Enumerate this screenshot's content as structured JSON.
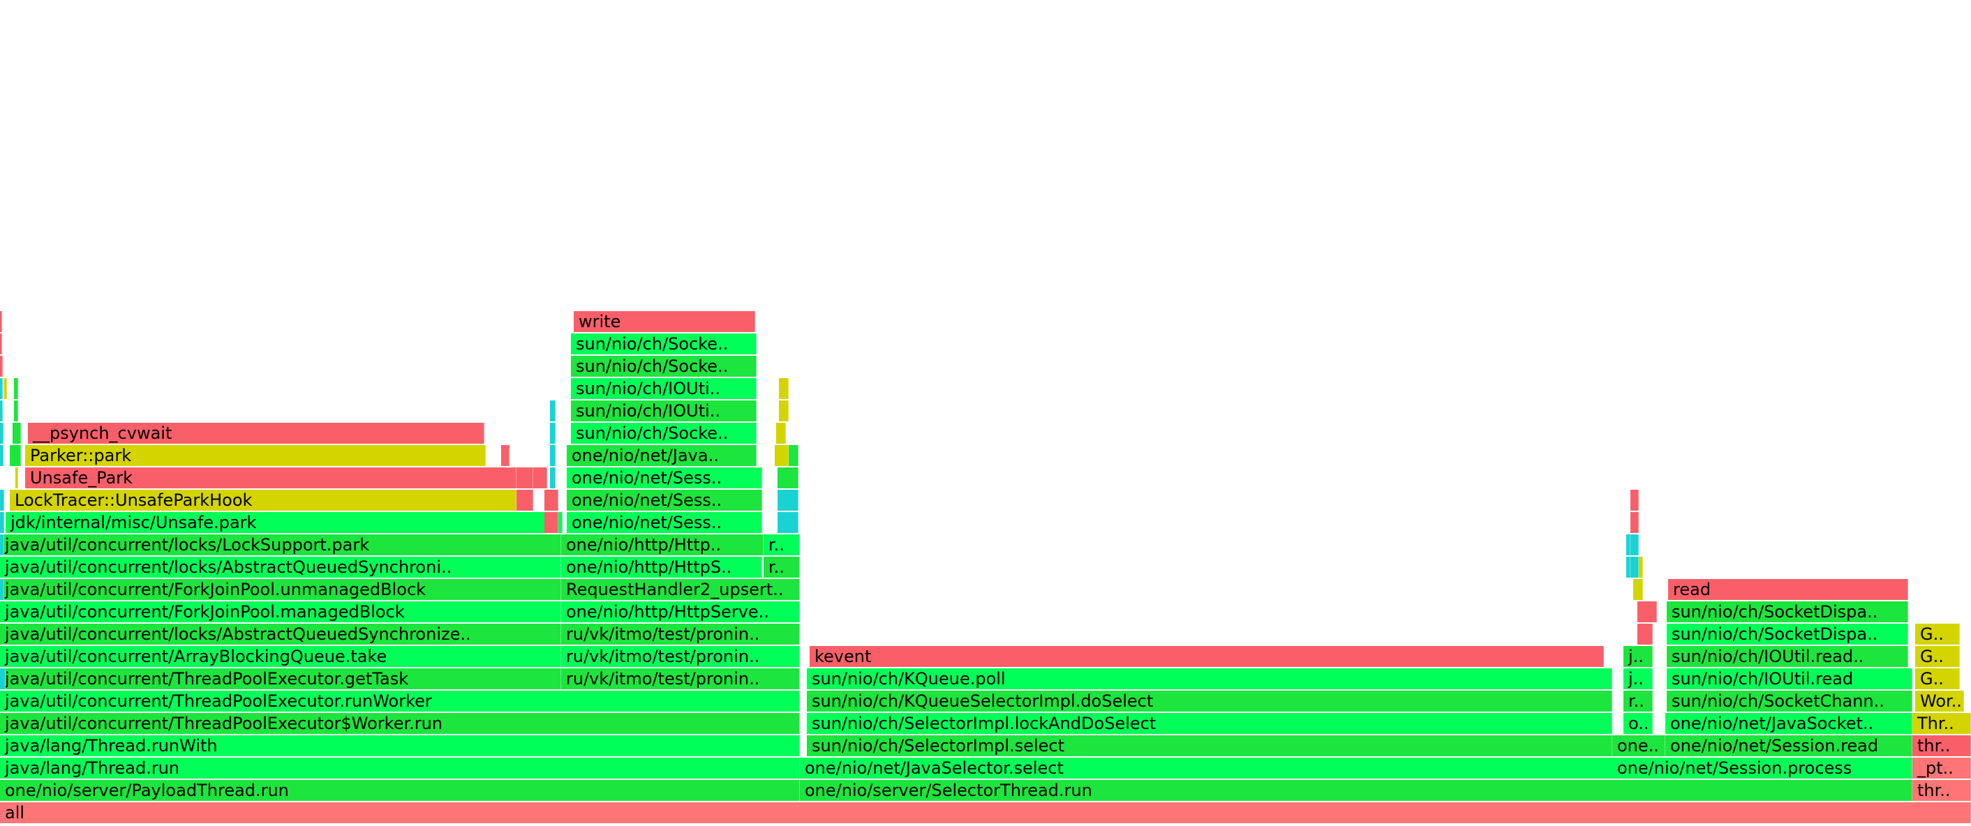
{
  "title": "",
  "colors": {
    "java": "#1ce53d",
    "java_alt": "#00ff57",
    "native": "#f95f69",
    "cpp": "#d4d400",
    "inlined": "#19d3d3",
    "root": "#ff7575"
  },
  "frames": [
    {
      "t": "all",
      "c": "root"
    },
    {
      "t": "one/nio/server/PayloadThread.run",
      "c": "java"
    },
    {
      "t": "java/lang/Thread.run",
      "c": "java_alt"
    },
    {
      "t": "java/lang/Thread.runWith",
      "c": "java_alt"
    },
    {
      "t": "java/util/concurrent/ThreadPoolExecutor$Worker.run",
      "c": "java"
    },
    {
      "t": "java/util/concurrent/ThreadPoolExecutor.runWorker",
      "c": "java_alt"
    },
    {
      "t": "java/util/concurrent/ThreadPoolExecutor.getTask",
      "c": "java"
    },
    {
      "t": "java/util/concurrent/ArrayBlockingQueue.take",
      "c": "java_alt"
    },
    {
      "t": "java/util/concurrent/locks/AbstractQueuedSynchronize..",
      "c": "java"
    },
    {
      "t": "java/util/concurrent/ForkJoinPool.managedBlock",
      "c": "java_alt"
    },
    {
      "t": "java/util/concurrent/ForkJoinPool.unmanagedBlock",
      "c": "java"
    },
    {
      "t": "java/util/concurrent/locks/AbstractQueuedSynchroni..",
      "c": "java_alt"
    },
    {
      "t": "java/util/concurrent/locks/LockSupport.park",
      "c": "java"
    },
    {
      "t": "jdk/internal/misc/Unsafe.park",
      "c": "java_alt"
    },
    {
      "t": "LockTracer::UnsafeParkHook",
      "c": "cpp"
    },
    {
      "t": "Unsafe_Park",
      "c": "native"
    },
    {
      "t": "Parker::park",
      "c": "cpp"
    },
    {
      "t": "__psynch_cvwait",
      "c": "native"
    },
    {
      "t": "ru/vk/itmo/test/pronin..",
      "c": "java"
    },
    {
      "t": "ru/vk/itmo/test/pronin..",
      "c": "java_alt"
    },
    {
      "t": "ru/vk/itmo/test/pronin..",
      "c": "java"
    },
    {
      "t": "one/nio/http/HttpServe..",
      "c": "java_alt"
    },
    {
      "t": "RequestHandler2_upsert..",
      "c": "java"
    },
    {
      "t": "one/nio/http/HttpS..",
      "c": "java_alt"
    },
    {
      "t": "r..",
      "c": "java"
    },
    {
      "t": "one/nio/http/Http..",
      "c": "java"
    },
    {
      "t": "r..",
      "c": "java_alt"
    },
    {
      "t": "one/nio/net/Sess..",
      "c": "java_alt"
    },
    {
      "t": "one/nio/net/Sess..",
      "c": "java"
    },
    {
      "t": "one/nio/net/Sess..",
      "c": "java_alt"
    },
    {
      "t": "one/nio/net/Java..",
      "c": "java"
    },
    {
      "t": "sun/nio/ch/Socke..",
      "c": "java_alt"
    },
    {
      "t": "sun/nio/ch/IOUti..",
      "c": "java"
    },
    {
      "t": "sun/nio/ch/IOUti..",
      "c": "java_alt"
    },
    {
      "t": "sun/nio/ch/Socke..",
      "c": "java"
    },
    {
      "t": "sun/nio/ch/Socke..",
      "c": "java_alt"
    },
    {
      "t": "write",
      "c": "native"
    },
    {
      "t": "one/nio/server/SelectorThread.run",
      "c": "java"
    },
    {
      "t": "one/nio/net/JavaSelector.select",
      "c": "java_alt"
    },
    {
      "t": "sun/nio/ch/SelectorImpl.select",
      "c": "java"
    },
    {
      "t": "sun/nio/ch/SelectorImpl.lockAndDoSelect",
      "c": "java_alt"
    },
    {
      "t": "sun/nio/ch/KQueueSelectorImpl.doSelect",
      "c": "java"
    },
    {
      "t": "sun/nio/ch/KQueue.poll",
      "c": "java_alt"
    },
    {
      "t": "kevent",
      "c": "native"
    },
    {
      "t": "one/nio/net/Session.process",
      "c": "java_alt"
    },
    {
      "t": "one..",
      "c": "java"
    },
    {
      "t": "o..",
      "c": "java_alt"
    },
    {
      "t": "r..",
      "c": "java"
    },
    {
      "t": "j..",
      "c": "java_alt"
    },
    {
      "t": "j..",
      "c": "java"
    },
    {
      "t": "one/nio/net/Session.read",
      "c": "java"
    },
    {
      "t": "one/nio/net/JavaSocket..",
      "c": "java_alt"
    },
    {
      "t": "sun/nio/ch/SocketChann..",
      "c": "java"
    },
    {
      "t": "sun/nio/ch/IOUtil.read",
      "c": "java_alt"
    },
    {
      "t": "sun/nio/ch/IOUtil.read..",
      "c": "java"
    },
    {
      "t": "sun/nio/ch/SocketDispa..",
      "c": "java_alt"
    },
    {
      "t": "sun/nio/ch/SocketDispa..",
      "c": "java"
    },
    {
      "t": "read",
      "c": "native"
    },
    {
      "t": "thr..",
      "c": "root"
    },
    {
      "t": "_pt..",
      "c": "root"
    },
    {
      "t": "thr..",
      "c": "native"
    },
    {
      "t": "Thr..",
      "c": "cpp"
    },
    {
      "t": "Wor..",
      "c": "cpp"
    },
    {
      "t": "G..",
      "c": "cpp"
    },
    {
      "t": "G..",
      "c": "cpp"
    },
    {
      "t": "G..",
      "c": "cpp"
    },
    {
      "t": "",
      "c": "inlined"
    },
    {
      "t": "",
      "c": "inlined"
    },
    {
      "t": "",
      "c": "inlined"
    },
    {
      "t": "",
      "c": "inlined"
    },
    {
      "t": "",
      "c": "inlined"
    },
    {
      "t": "",
      "c": "inlined"
    },
    {
      "t": "",
      "c": "inlined"
    },
    {
      "t": "",
      "c": "inlined"
    },
    {
      "t": "",
      "c": "inlined"
    },
    {
      "t": "",
      "c": "native"
    },
    {
      "t": "",
      "c": "native"
    },
    {
      "t": "",
      "c": "native"
    },
    {
      "t": "",
      "c": "cpp"
    },
    {
      "t": "",
      "c": "cpp"
    },
    {
      "t": "",
      "c": "cpp"
    },
    {
      "t": "",
      "c": "java"
    },
    {
      "t": "",
      "c": "java"
    },
    {
      "t": "",
      "c": "java"
    },
    {
      "t": "",
      "c": "java"
    },
    {
      "t": "",
      "c": "native"
    },
    {
      "t": "",
      "c": "native"
    },
    {
      "t": "",
      "c": "native"
    },
    {
      "t": "",
      "c": "inlined"
    },
    {
      "t": "",
      "c": "inlined"
    },
    {
      "t": "",
      "c": "inlined"
    },
    {
      "t": "",
      "c": "inlined"
    },
    {
      "t": "",
      "c": "inlined"
    },
    {
      "t": "",
      "c": "inlined"
    },
    {
      "t": "",
      "c": "native"
    },
    {
      "t": "",
      "c": "native"
    },
    {
      "t": "",
      "c": "native"
    },
    {
      "t": "",
      "c": "inlined"
    },
    {
      "t": "",
      "c": "inlined"
    },
    {
      "t": "",
      "c": "java"
    },
    {
      "t": "",
      "c": "java"
    },
    {
      "t": "",
      "c": "cpp"
    },
    {
      "t": "",
      "c": "cpp"
    },
    {
      "t": "",
      "c": "cpp"
    },
    {
      "t": "",
      "c": "cpp"
    },
    {
      "t": "",
      "c": "native"
    },
    {
      "t": "",
      "c": "native"
    },
    {
      "t": "",
      "c": "cpp"
    },
    {
      "t": "",
      "c": "cpp"
    },
    {
      "t": "",
      "c": "inlined"
    },
    {
      "t": "",
      "c": "inlined"
    },
    {
      "t": "",
      "c": "native"
    },
    {
      "t": "",
      "c": "native"
    },
    {
      "t": "",
      "c": "inlined"
    },
    {
      "t": "",
      "c": "inlined"
    }
  ]
}
